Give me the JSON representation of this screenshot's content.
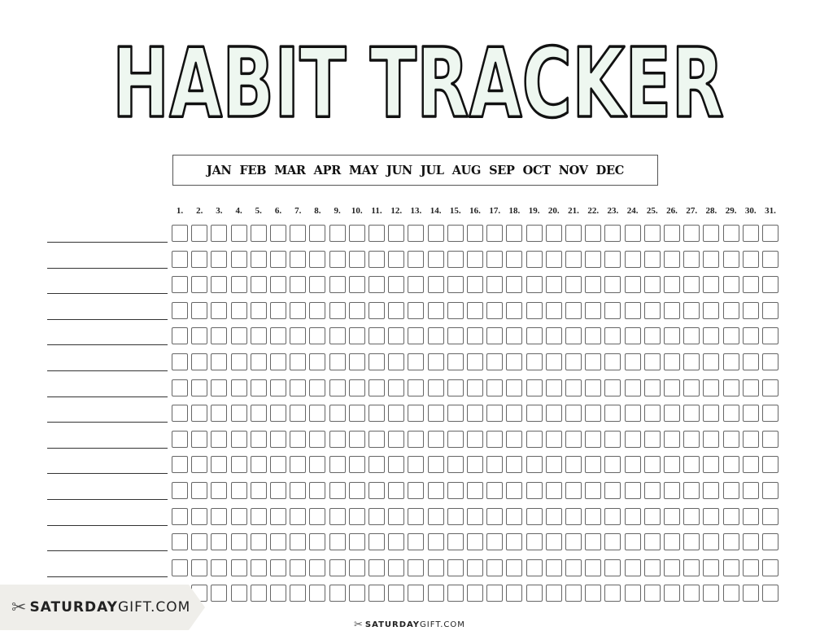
{
  "title": "HABIT TRACKER",
  "months": [
    "JAN",
    "FEB",
    "MAR",
    "APR",
    "MAY",
    "JUN",
    "JUL",
    "AUG",
    "SEP",
    "OCT",
    "NOV",
    "DEC"
  ],
  "days": [
    "1.",
    "2.",
    "3.",
    "4.",
    "5.",
    "6.",
    "7.",
    "8.",
    "9.",
    "10.",
    "11.",
    "12.",
    "13.",
    "14.",
    "15.",
    "16.",
    "17.",
    "18.",
    "19.",
    "20.",
    "21.",
    "22.",
    "23.",
    "24.",
    "25.",
    "26.",
    "27.",
    "28.",
    "29.",
    "30.",
    "31."
  ],
  "habit_rows": 15,
  "brand": {
    "bold": "SATURDAY",
    "light": "GIFT.COM",
    "icon": "scissors-bow-icon"
  },
  "colors": {
    "title_fill": "#eef7f0",
    "title_stroke": "#111111",
    "badge_bg": "#efeeea"
  }
}
